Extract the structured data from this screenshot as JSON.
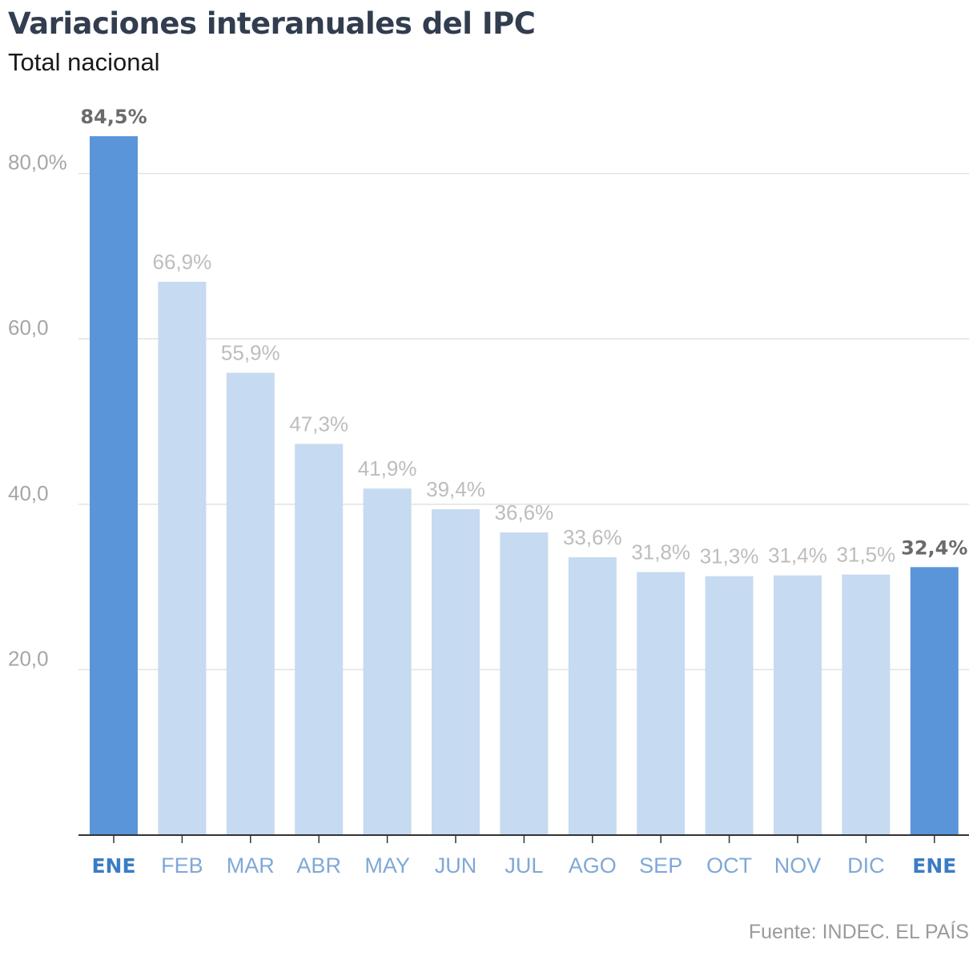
{
  "header": {
    "title": "Variaciones interanuales del IPC",
    "subtitle": "Total nacional"
  },
  "footer": {
    "source": "Fuente: INDEC. EL PAÍS"
  },
  "colors": {
    "highlight_bar": "#5b95d9",
    "regular_bar": "#c6daf1",
    "highlight_label": "#6b6b6b",
    "regular_label": "#bdbdbd",
    "highlight_tick": "#3b7cc4",
    "regular_tick": "#7fa8d8",
    "axis_tick_label": "#a6a6a6",
    "gridline": "#e2e2e2",
    "baseline": "#333333"
  },
  "chart_data": {
    "type": "bar",
    "title": "Variaciones interanuales del IPC",
    "subtitle": "Total nacional",
    "categories": [
      "ENE",
      "FEB",
      "MAR",
      "ABR",
      "MAY",
      "JUN",
      "JUL",
      "AGO",
      "SEP",
      "OCT",
      "NOV",
      "DIC",
      "ENE"
    ],
    "values": [
      84.5,
      66.9,
      55.9,
      47.3,
      41.9,
      39.4,
      36.6,
      33.6,
      31.8,
      31.3,
      31.4,
      31.5,
      32.4
    ],
    "value_labels": [
      "84,5%",
      "66,9%",
      "55,9%",
      "47,3%",
      "41,9%",
      "39,4%",
      "36,6%",
      "33,6%",
      "31,8%",
      "31,3%",
      "31,4%",
      "31,5%",
      "32,4%"
    ],
    "highlighted": [
      true,
      false,
      false,
      false,
      false,
      false,
      false,
      false,
      false,
      false,
      false,
      false,
      true
    ],
    "y_ticks": [
      20,
      40,
      60,
      80
    ],
    "y_tick_labels": [
      "20,0",
      "40,0",
      "60,0",
      "80,0%"
    ],
    "ylim": [
      0,
      90
    ],
    "xlabel": "",
    "ylabel": "",
    "grid": true,
    "legend": "none",
    "source": "Fuente: INDEC. EL PAÍS"
  }
}
